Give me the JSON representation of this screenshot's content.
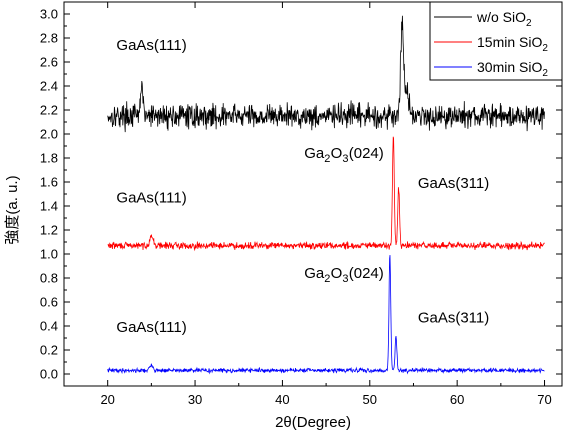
{
  "chart_data": {
    "type": "line",
    "xlabel": "2θ(Degree)",
    "ylabel": "強度(a. u.)",
    "xlim": [
      15,
      72
    ],
    "ylim": [
      -0.1,
      3.1
    ],
    "xticks": [
      20,
      30,
      40,
      50,
      60,
      70
    ],
    "yticks": [
      0.0,
      0.2,
      0.4,
      0.6,
      0.8,
      1.0,
      1.2,
      1.4,
      1.6,
      1.8,
      2.0,
      2.2,
      2.4,
      2.6,
      2.8,
      3.0
    ],
    "grid": false,
    "legend_position": "top-right",
    "series": [
      {
        "name": "w/o SiO2",
        "name_main": "w/o SiO",
        "name_sub": "2",
        "color": "#000000",
        "x_range": [
          20,
          70
        ],
        "baseline": 2.15,
        "noise": 0.07,
        "seed": 17,
        "peaks": [
          {
            "x": 23.9,
            "height": 0.3,
            "width": 0.12
          },
          {
            "x": 53.7,
            "height": 0.75,
            "width": 0.18
          },
          {
            "x": 54.3,
            "height": 0.2,
            "width": 0.25
          }
        ]
      },
      {
        "name": "15min SiO2",
        "name_main": "15min SiO",
        "name_sub": "2",
        "color": "#ff0000",
        "x_range": [
          20,
          70
        ],
        "baseline": 1.07,
        "noise": 0.02,
        "seed": 29,
        "peaks": [
          {
            "x": 25.0,
            "height": 0.08,
            "width": 0.2
          },
          {
            "x": 52.7,
            "height": 0.92,
            "width": 0.1
          },
          {
            "x": 53.3,
            "height": 0.48,
            "width": 0.1
          }
        ]
      },
      {
        "name": "30min SiO2",
        "name_main": "30min SiO",
        "name_sub": "2",
        "color": "#0000ff",
        "x_range": [
          20,
          70
        ],
        "baseline": 0.03,
        "noise": 0.012,
        "seed": 41,
        "peaks": [
          {
            "x": 25.0,
            "height": 0.04,
            "width": 0.2
          },
          {
            "x": 52.3,
            "height": 0.97,
            "width": 0.1
          },
          {
            "x": 53.0,
            "height": 0.29,
            "width": 0.1
          }
        ]
      }
    ],
    "annotations": [
      {
        "text": "GaAs(111)",
        "x": 21,
        "y": 2.7
      },
      {
        "text": "GaAs(111)",
        "x": 21,
        "y": 1.43
      },
      {
        "text": "GaAs(111)",
        "x": 21,
        "y": 0.35
      },
      {
        "text": "GaAs(311)",
        "x": 55.5,
        "y": 1.55
      },
      {
        "text": "GaAs(311)",
        "x": 55.5,
        "y": 0.43
      },
      {
        "text": "Ga2O3(024)",
        "x": 42.5,
        "y": 1.8,
        "ga": "Ga",
        "sub1": "2",
        "o": "O",
        "sub2": "3",
        "rest": "(024)"
      },
      {
        "text": "Ga2O3(024)",
        "x": 42.5,
        "y": 0.8,
        "ga": "Ga",
        "sub1": "2",
        "o": "O",
        "sub2": "3",
        "rest": "(024)"
      }
    ]
  }
}
